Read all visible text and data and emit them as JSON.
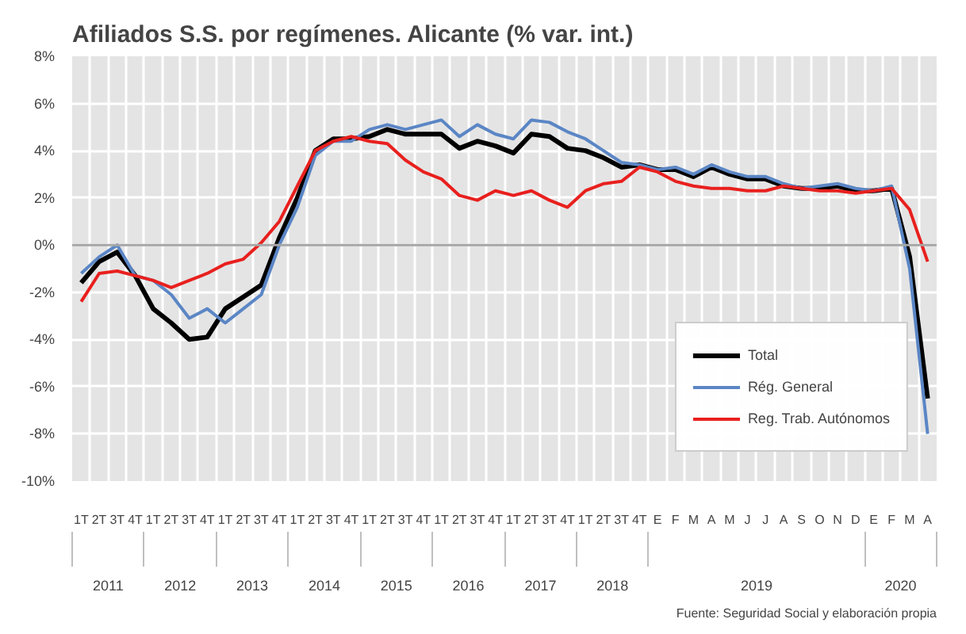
{
  "chart_data": {
    "type": "line",
    "title": "Afiliados S.S. por regímenes. Alicante (% var. int.)",
    "categories": [
      [
        "2011",
        "1T"
      ],
      [
        "2T"
      ],
      [
        "3T"
      ],
      [
        "4T"
      ],
      [
        "2012",
        "1T"
      ],
      [
        "2T"
      ],
      [
        "3T"
      ],
      [
        "4T"
      ],
      [
        "2013",
        "1T"
      ],
      [
        "2T"
      ],
      [
        "3T"
      ],
      [
        "4T"
      ],
      [
        "2014",
        "1T"
      ],
      [
        "2T"
      ],
      [
        "3T"
      ],
      [
        "4T"
      ],
      [
        "2015",
        "1T"
      ],
      [
        "2T"
      ],
      [
        "3T"
      ],
      [
        "4T"
      ],
      [
        "2016",
        "1T"
      ],
      [
        "2T"
      ],
      [
        "3T"
      ],
      [
        "4T"
      ],
      [
        "2017",
        "1T"
      ],
      [
        "2T"
      ],
      [
        "3T"
      ],
      [
        "4T"
      ],
      [
        "2018",
        "1T"
      ],
      [
        "2T"
      ],
      [
        "3T"
      ],
      [
        "4T"
      ],
      [
        "2019",
        "E"
      ],
      [
        "F"
      ],
      [
        "M"
      ],
      [
        "A"
      ],
      [
        "M"
      ],
      [
        "J"
      ],
      [
        "J"
      ],
      [
        "A"
      ],
      [
        "S"
      ],
      [
        "O"
      ],
      [
        "N"
      ],
      [
        "D"
      ],
      [
        "2020",
        "E"
      ],
      [
        "F"
      ],
      [
        "M"
      ],
      [
        "A"
      ]
    ],
    "series": [
      {
        "name": "Total",
        "color": "#000000",
        "values": [
          -1.6,
          -0.7,
          -0.3,
          -1.3,
          -2.7,
          -3.3,
          -4.0,
          -3.9,
          -2.7,
          -2.2,
          -1.7,
          0.3,
          2.0,
          4.0,
          4.5,
          4.5,
          4.6,
          4.9,
          4.7,
          4.7,
          4.7,
          4.1,
          4.4,
          4.2,
          3.9,
          4.7,
          4.6,
          4.1,
          4.0,
          3.7,
          3.3,
          3.4,
          3.2,
          3.2,
          2.9,
          3.3,
          3.0,
          2.8,
          2.8,
          2.5,
          2.4,
          2.4,
          2.5,
          2.3,
          2.3,
          2.4,
          -0.5,
          -6.5
        ]
      },
      {
        "name": "Rég. General",
        "color": "#5b86c5",
        "values": [
          -1.2,
          -0.5,
          0.0,
          -1.3,
          -1.5,
          -2.1,
          -3.1,
          -2.7,
          -3.3,
          -2.7,
          -2.1,
          0.0,
          1.6,
          3.8,
          4.4,
          4.4,
          4.9,
          5.1,
          4.9,
          5.1,
          5.3,
          4.6,
          5.1,
          4.7,
          4.5,
          5.3,
          5.2,
          4.8,
          4.5,
          4.0,
          3.5,
          3.4,
          3.2,
          3.3,
          3.0,
          3.4,
          3.1,
          2.9,
          2.9,
          2.6,
          2.4,
          2.5,
          2.6,
          2.4,
          2.3,
          2.5,
          -1.0,
          -8.0
        ]
      },
      {
        "name": "Reg. Trab. Autónomos",
        "color": "#e8201e",
        "values": [
          -2.4,
          -1.2,
          -1.1,
          -1.3,
          -1.5,
          -1.8,
          -1.5,
          -1.2,
          -0.8,
          -0.6,
          0.1,
          1.0,
          2.5,
          4.0,
          4.4,
          4.6,
          4.4,
          4.3,
          3.6,
          3.1,
          2.8,
          2.1,
          1.9,
          2.3,
          2.1,
          2.3,
          1.9,
          1.6,
          2.3,
          2.6,
          2.7,
          3.3,
          3.1,
          2.7,
          2.5,
          2.4,
          2.4,
          2.3,
          2.3,
          2.5,
          2.4,
          2.3,
          2.3,
          2.2,
          2.3,
          2.4,
          1.5,
          -0.7
        ]
      }
    ],
    "ylim": [
      -10,
      8
    ],
    "yticks": [
      {
        "value": -10,
        "label": "-10%"
      },
      {
        "value": -8,
        "label": "-8%"
      },
      {
        "value": -6,
        "label": "-6%"
      },
      {
        "value": -4,
        "label": "-4%"
      },
      {
        "value": -2,
        "label": "-2%"
      },
      {
        "value": 0,
        "label": "0%"
      },
      {
        "value": 2,
        "label": "2%"
      },
      {
        "value": 4,
        "label": "4%"
      },
      {
        "value": 6,
        "label": "6%"
      },
      {
        "value": 8,
        "label": "8%"
      }
    ],
    "grid": true,
    "legend": "bottom right",
    "marker": "none",
    "line_style": "solid",
    "ref_lines": [
      {
        "axis": "y",
        "value": 0,
        "color": "#a6a6a6"
      }
    ],
    "annotations": [
      "Fuente: Seguridad Social y elaboración propia"
    ]
  }
}
